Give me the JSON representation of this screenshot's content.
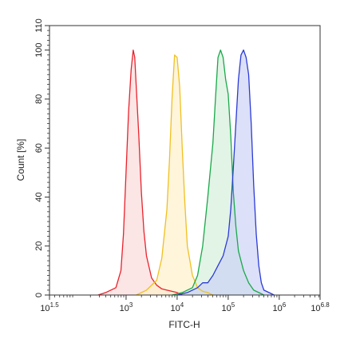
{
  "chart_data": {
    "type": "area",
    "xlabel": "FITC-H",
    "ylabel": "Count [%]",
    "x_scale": "log10",
    "xlim_log10": [
      1.5,
      6.8
    ],
    "ylim": [
      0,
      110
    ],
    "grid": false,
    "legend": "none",
    "x_ticks": [
      {
        "base": "10",
        "exp": "1.5",
        "value_log10": 1.5
      },
      {
        "base": "10",
        "exp": "3",
        "value_log10": 3
      },
      {
        "base": "10",
        "exp": "4",
        "value_log10": 4
      },
      {
        "base": "10",
        "exp": "5",
        "value_log10": 5
      },
      {
        "base": "10",
        "exp": "6",
        "value_log10": 6
      },
      {
        "base": "10",
        "exp": "6.8",
        "value_log10": 6.8
      }
    ],
    "y_ticks": [
      "0",
      "20",
      "40",
      "60",
      "80",
      "100",
      "110"
    ],
    "y_tick_values": [
      0,
      20,
      40,
      60,
      80,
      100,
      110
    ],
    "series": [
      {
        "color": "#e8232c",
        "fill": "#fbdada",
        "log10_x": [
          2.45,
          2.6,
          2.8,
          2.9,
          2.95,
          3.0,
          3.05,
          3.1,
          3.14,
          3.17,
          3.2,
          3.25,
          3.3,
          3.35,
          3.4,
          3.5,
          3.6,
          3.7,
          3.8,
          3.9,
          4.0,
          4.1
        ],
        "values": [
          0,
          1,
          3,
          10,
          25,
          50,
          75,
          92,
          100,
          97,
          85,
          65,
          42,
          26,
          16,
          7,
          4,
          2.5,
          2,
          1.5,
          1,
          0
        ]
      },
      {
        "color": "#f0c020",
        "fill": "#fdf1cc",
        "log10_x": [
          3.2,
          3.4,
          3.6,
          3.7,
          3.8,
          3.85,
          3.9,
          3.95,
          4.0,
          4.05,
          4.1,
          4.15,
          4.2,
          4.3,
          4.4,
          4.5,
          4.6,
          4.7
        ],
        "values": [
          0,
          2,
          6,
          15,
          35,
          55,
          80,
          98,
          97,
          85,
          60,
          38,
          20,
          8,
          3,
          1.5,
          1,
          0
        ]
      },
      {
        "color": "#1aa84a",
        "fill": "#d6f0dc",
        "log10_x": [
          3.9,
          4.1,
          4.3,
          4.4,
          4.5,
          4.6,
          4.7,
          4.75,
          4.8,
          4.85,
          4.9,
          4.95,
          5.0,
          5.05,
          5.1,
          5.15,
          5.2,
          5.3,
          5.4,
          5.5,
          5.6,
          5.7
        ],
        "values": [
          0,
          1,
          3,
          8,
          20,
          40,
          62,
          80,
          97,
          100,
          97,
          88,
          82,
          65,
          42,
          28,
          18,
          10,
          5,
          2,
          1,
          0
        ]
      },
      {
        "color": "#2b3ad6",
        "fill": "#cdd3f5",
        "log10_x": [
          4.0,
          4.2,
          4.4,
          4.5,
          4.6,
          4.7,
          4.8,
          4.9,
          5.0,
          5.05,
          5.1,
          5.15,
          5.2,
          5.25,
          5.3,
          5.35,
          5.4,
          5.45,
          5.5,
          5.55,
          5.6,
          5.65,
          5.7,
          5.8,
          5.9
        ],
        "values": [
          0,
          1,
          3,
          5,
          5,
          8,
          12,
          16,
          24,
          35,
          52,
          70,
          88,
          98,
          100,
          97,
          90,
          70,
          45,
          25,
          12,
          5,
          2,
          1,
          0
        ]
      }
    ]
  }
}
